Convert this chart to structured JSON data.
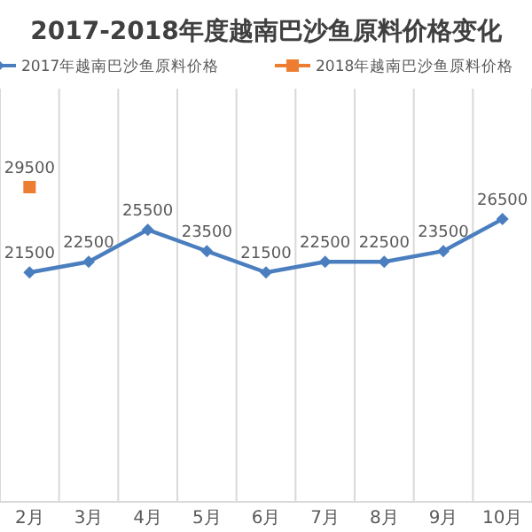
{
  "chart_data": {
    "type": "line",
    "title": "2017-2018年度越南巴沙鱼原料价格变化",
    "categories": [
      "2月",
      "3月",
      "4月",
      "5月",
      "6月",
      "7月",
      "8月",
      "9月",
      "10月"
    ],
    "series": [
      {
        "name": "2017年越南巴沙鱼原料价格",
        "color": "#4a7ebf",
        "marker": "diamond",
        "values": [
          21500,
          22500,
          25500,
          23500,
          21500,
          22500,
          22500,
          23500,
          26500
        ]
      },
      {
        "name": "2018年越南巴沙鱼原料价格",
        "color": "#ed7d31",
        "marker": "square",
        "values": [
          29500,
          null,
          null,
          null,
          null,
          null,
          null,
          null,
          null
        ]
      }
    ],
    "data_labels": true,
    "grid": "x",
    "legend": "top"
  }
}
